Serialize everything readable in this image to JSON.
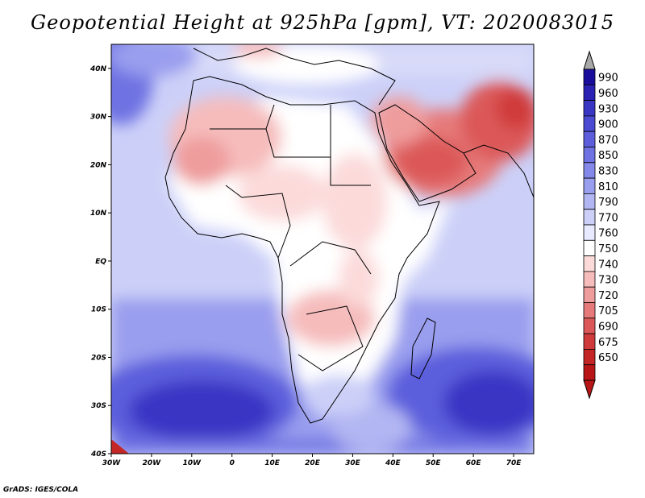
{
  "title": "Geopotential Height at 925hPa [gpm], VT: 2020083015",
  "credit": "GrADS: IGES/COLA",
  "map": {
    "lon_range": [
      -30,
      75
    ],
    "lat_range": [
      -40,
      45
    ],
    "lon_ticks": [
      "30W",
      "20W",
      "10W",
      "0",
      "10E",
      "20E",
      "30E",
      "40E",
      "50E",
      "60E",
      "70E"
    ],
    "lat_ticks": [
      "40N",
      "30N",
      "20N",
      "10N",
      "EQ",
      "10S",
      "20S",
      "30S",
      "40S"
    ],
    "variable": "Geopotential Height",
    "level": "925hPa",
    "units": "gpm"
  },
  "colorbar": {
    "labels": [
      "990",
      "960",
      "930",
      "900",
      "870",
      "850",
      "830",
      "810",
      "790",
      "770",
      "760",
      "750",
      "740",
      "730",
      "720",
      "705",
      "690",
      "675",
      "650"
    ],
    "colors": [
      "#1a0d9c",
      "#2a22b2",
      "#3a36c4",
      "#4a4ad2",
      "#5c5edc",
      "#6e72e2",
      "#8488e8",
      "#9a9eee",
      "#b2b6f2",
      "#ccd0f8",
      "#e8eaff",
      "#ffffff",
      "#fcdada",
      "#f6bcbc",
      "#ef9c9c",
      "#e67a7a",
      "#dc5858",
      "#d03a3a",
      "#c42626",
      "#b81616"
    ],
    "above_color": "#a8a8a8",
    "below_color": "#b81616"
  }
}
